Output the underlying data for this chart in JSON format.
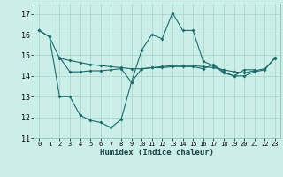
{
  "xlabel": "Humidex (Indice chaleur)",
  "line1_x": [
    0,
    1,
    2,
    3,
    4,
    5,
    6,
    7,
    8,
    9,
    10,
    11,
    12,
    13,
    14,
    15,
    16,
    17,
    18,
    19,
    20,
    21,
    22,
    23
  ],
  "line1_y": [
    16.2,
    15.9,
    14.85,
    14.75,
    14.65,
    14.55,
    14.5,
    14.45,
    14.4,
    14.35,
    14.35,
    14.4,
    14.45,
    14.5,
    14.5,
    14.5,
    14.45,
    14.4,
    14.3,
    14.2,
    14.15,
    14.25,
    14.35,
    14.85
  ],
  "line2_x": [
    0,
    1,
    2,
    3,
    4,
    5,
    6,
    7,
    8,
    9,
    10,
    11,
    12,
    13,
    14,
    15,
    16,
    17,
    18,
    19,
    20,
    21
  ],
  "line2_y": [
    16.2,
    15.9,
    13.0,
    13.0,
    12.1,
    11.85,
    11.75,
    11.5,
    11.9,
    13.7,
    15.25,
    16.0,
    15.8,
    17.05,
    16.2,
    16.2,
    14.7,
    14.5,
    14.15,
    14.0,
    14.3,
    14.3
  ],
  "line3_x": [
    2,
    3,
    4,
    5,
    6,
    7,
    8,
    9,
    10,
    11,
    12,
    13,
    14,
    15,
    16,
    17,
    18,
    19,
    20,
    21,
    22,
    23
  ],
  "line3_y": [
    14.9,
    14.2,
    14.2,
    14.25,
    14.25,
    14.3,
    14.35,
    13.7,
    14.35,
    14.4,
    14.4,
    14.45,
    14.45,
    14.45,
    14.35,
    14.55,
    14.2,
    14.0,
    14.0,
    14.2,
    14.3,
    14.9
  ],
  "bg_color": "#cceee8",
  "grid_color": "#aad8d0",
  "line_color": "#1a6b6b",
  "ylim": [
    11,
    17.5
  ],
  "yticks": [
    11,
    12,
    13,
    14,
    15,
    16,
    17
  ],
  "xticks": [
    0,
    1,
    2,
    3,
    4,
    5,
    6,
    7,
    8,
    9,
    10,
    11,
    12,
    13,
    14,
    15,
    16,
    17,
    18,
    19,
    20,
    21,
    22,
    23
  ]
}
